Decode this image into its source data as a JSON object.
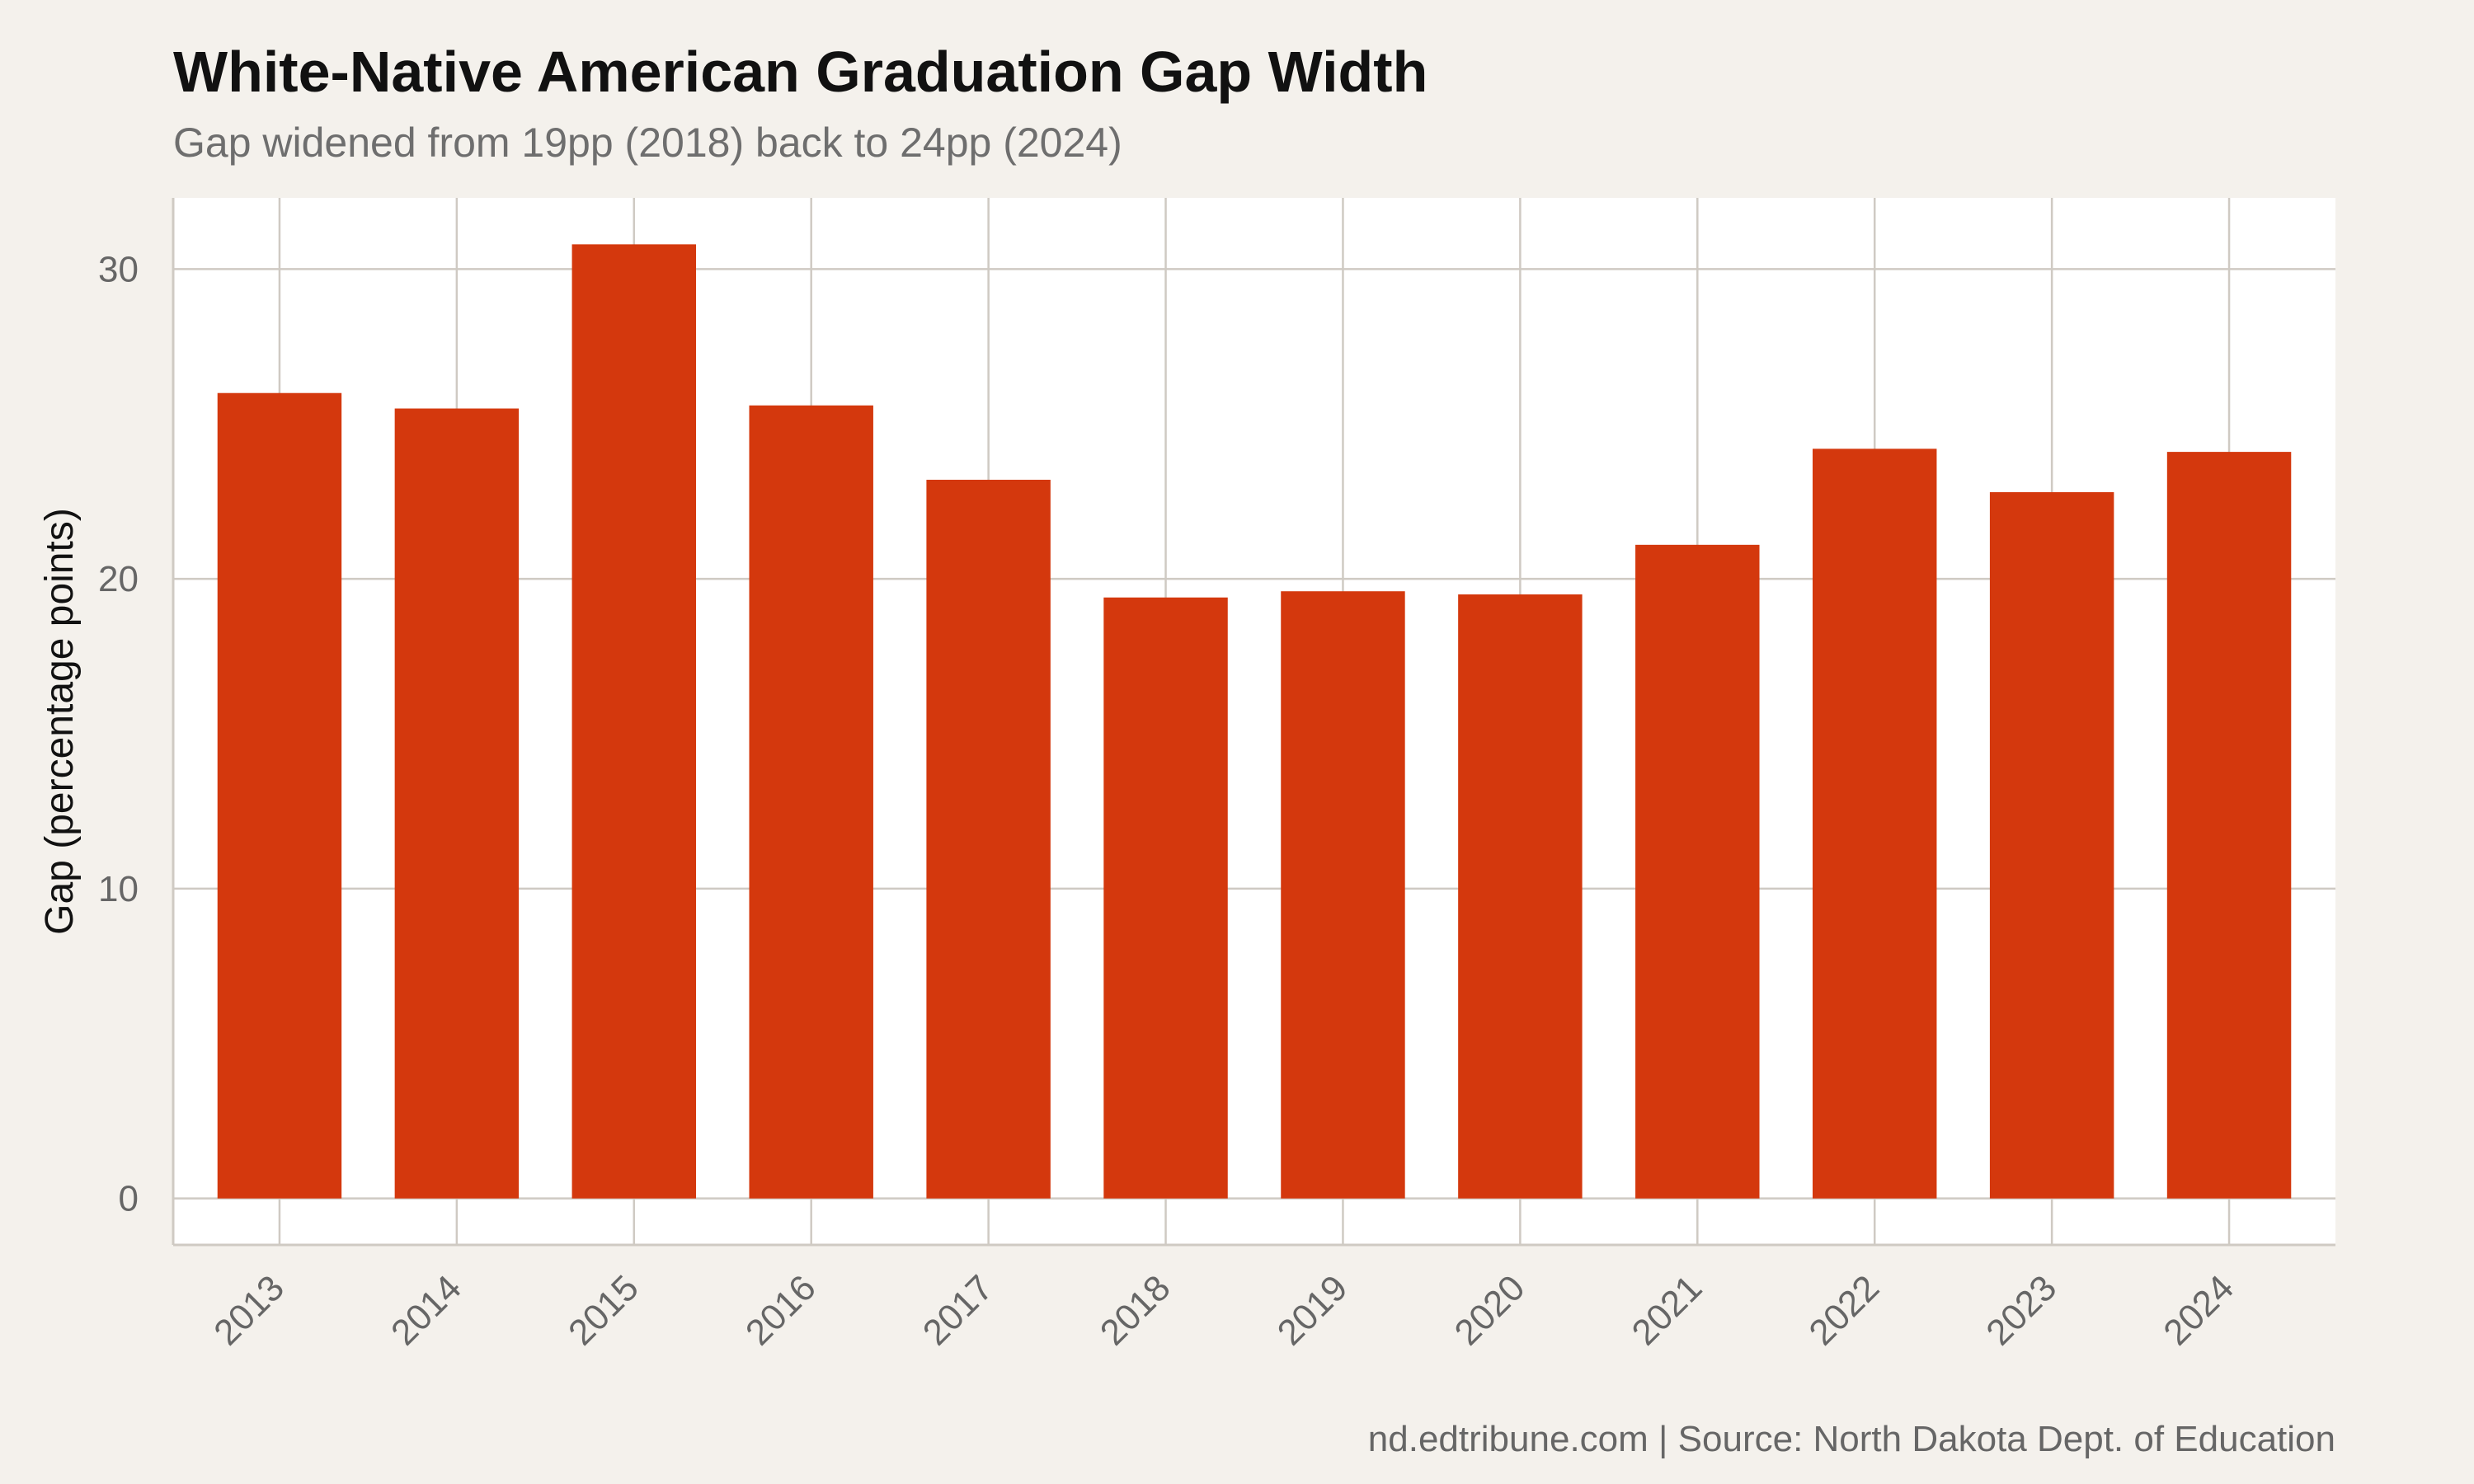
{
  "chart_data": {
    "type": "bar",
    "title": "White-Native American Graduation Gap Width",
    "subtitle": "Gap widened from 19pp (2018) back to 24pp (2024)",
    "xlabel": "",
    "ylabel": "Gap (percentage points)",
    "categories": [
      "2013",
      "2014",
      "2015",
      "2016",
      "2017",
      "2018",
      "2019",
      "2020",
      "2021",
      "2022",
      "2023",
      "2024"
    ],
    "values": [
      26.0,
      25.5,
      30.8,
      25.6,
      23.2,
      19.4,
      19.6,
      19.5,
      21.1,
      24.2,
      22.8,
      24.1
    ],
    "ylim": [
      -1.5,
      32.3
    ],
    "yticks": [
      0,
      10,
      20,
      30
    ],
    "grid": true,
    "legend": "none",
    "caption": "nd.edtribune.com | Source: North Dakota Dept. of Education",
    "colors": {
      "bar": "#d4380d",
      "panel": "#ffffff",
      "page": "#f4f1ec",
      "grid": "#cfcac3"
    }
  }
}
